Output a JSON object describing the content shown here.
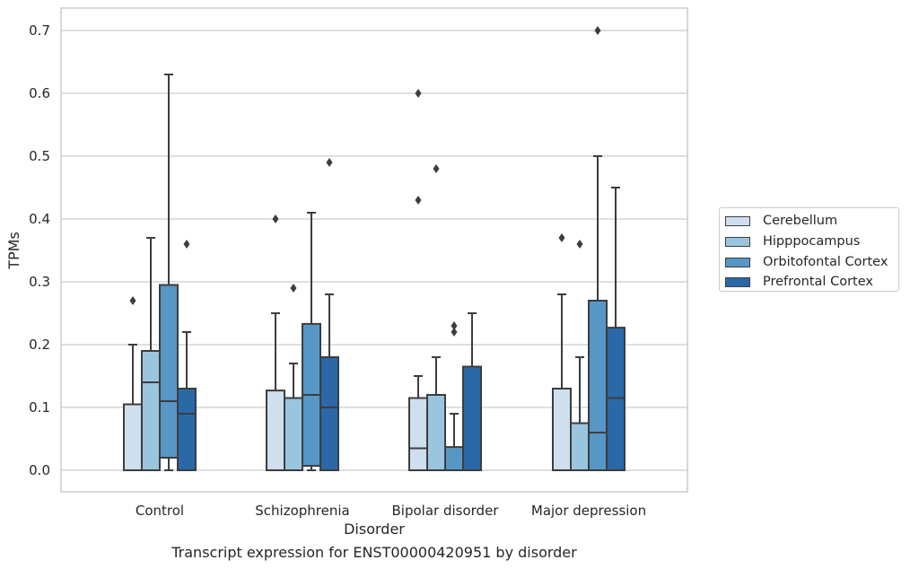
{
  "caption": "Transcript expression for ENST00000420951 by disorder",
  "chart_data": {
    "type": "box",
    "title": "",
    "xlabel": "Disorder",
    "ylabel": "TPMs",
    "ylim": [
      -0.034,
      0.735
    ],
    "yticks": [
      "0.0",
      "0.1",
      "0.2",
      "0.3",
      "0.4",
      "0.5",
      "0.6",
      "0.7"
    ],
    "ytick_values": [
      0.0,
      0.1,
      0.2,
      0.3,
      0.4,
      0.5,
      0.6,
      0.7
    ],
    "grid": true,
    "legend_position": "right",
    "categories": [
      "Control",
      "Schizophrenia",
      "Bipolar disorder",
      "Major depression"
    ],
    "series": [
      {
        "name": "Cerebellum",
        "color": "#cfdfee",
        "boxes": [
          {
            "whislo": 0.0,
            "q1": 0.0,
            "med": 0.0,
            "q3": 0.105,
            "whishi": 0.2,
            "fliers": [
              0.27
            ]
          },
          {
            "whislo": 0.0,
            "q1": 0.0,
            "med": 0.0,
            "q3": 0.127,
            "whishi": 0.25,
            "fliers": [
              0.4
            ]
          },
          {
            "whislo": 0.0,
            "q1": 0.0,
            "med": 0.035,
            "q3": 0.115,
            "whishi": 0.15,
            "fliers": [
              0.43,
              0.6
            ]
          },
          {
            "whislo": 0.0,
            "q1": 0.0,
            "med": 0.0,
            "q3": 0.13,
            "whishi": 0.28,
            "fliers": [
              0.37
            ]
          }
        ]
      },
      {
        "name": "Hipppocampus",
        "color": "#9ac5de",
        "boxes": [
          {
            "whislo": 0.0,
            "q1": 0.0,
            "med": 0.14,
            "q3": 0.19,
            "whishi": 0.37,
            "fliers": []
          },
          {
            "whislo": 0.0,
            "q1": 0.0,
            "med": 0.0,
            "q3": 0.115,
            "whishi": 0.17,
            "fliers": [
              0.29
            ]
          },
          {
            "whislo": 0.0,
            "q1": 0.0,
            "med": 0.0,
            "q3": 0.12,
            "whishi": 0.18,
            "fliers": [
              0.48
            ]
          },
          {
            "whislo": 0.0,
            "q1": 0.0,
            "med": 0.0,
            "q3": 0.075,
            "whishi": 0.18,
            "fliers": [
              0.36
            ]
          }
        ]
      },
      {
        "name": "Orbitofontal Cortex",
        "color": "#5697c6",
        "boxes": [
          {
            "whislo": 0.0,
            "q1": 0.02,
            "med": 0.11,
            "q3": 0.295,
            "whishi": 0.63,
            "fliers": []
          },
          {
            "whislo": 0.0,
            "q1": 0.007,
            "med": 0.12,
            "q3": 0.233,
            "whishi": 0.41,
            "fliers": []
          },
          {
            "whislo": 0.0,
            "q1": 0.0,
            "med": 0.0,
            "q3": 0.037,
            "whishi": 0.09,
            "fliers": [
              0.22,
              0.23
            ]
          },
          {
            "whislo": 0.0,
            "q1": 0.0,
            "med": 0.06,
            "q3": 0.27,
            "whishi": 0.5,
            "fliers": [
              0.7
            ]
          }
        ]
      },
      {
        "name": "Prefrontal Cortex",
        "color": "#2a68a8",
        "boxes": [
          {
            "whislo": 0.0,
            "q1": 0.0,
            "med": 0.09,
            "q3": 0.13,
            "whishi": 0.22,
            "fliers": [
              0.36
            ]
          },
          {
            "whislo": 0.0,
            "q1": 0.0,
            "med": 0.1,
            "q3": 0.18,
            "whishi": 0.28,
            "fliers": [
              0.49
            ]
          },
          {
            "whislo": 0.0,
            "q1": 0.0,
            "med": 0.0,
            "q3": 0.165,
            "whishi": 0.25,
            "fliers": []
          },
          {
            "whislo": 0.0,
            "q1": 0.0,
            "med": 0.115,
            "q3": 0.227,
            "whishi": 0.45,
            "fliers": []
          }
        ]
      }
    ]
  }
}
